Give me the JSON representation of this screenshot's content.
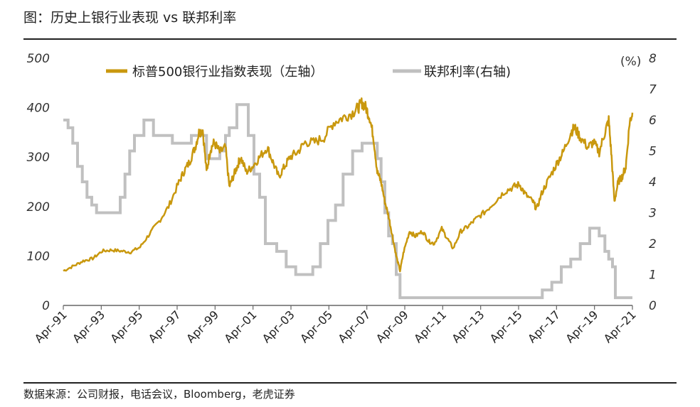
{
  "header": {
    "title": "图：历史上银行业表现 vs  联邦利率"
  },
  "footer": {
    "source": "数据来源：公司财报，电话会议，Bloomberg，老虎证券"
  },
  "colors": {
    "bank_line": "#c9980e",
    "fed_line": "#c0c0c0",
    "axis": "#666666"
  },
  "chart_data": {
    "type": "line",
    "title": "历史上银行业表现 vs  联邦利率",
    "y_left": {
      "ticks": [
        "0",
        "100",
        "200",
        "300",
        "400",
        "500"
      ],
      "lim": [
        0,
        500
      ]
    },
    "y_right": {
      "ticks": [
        "0",
        "1",
        "2",
        "3",
        "4",
        "5",
        "6",
        "7",
        "8"
      ],
      "lim": [
        0,
        8
      ],
      "unit": "(%)"
    },
    "x_range": [
      1991.25,
      2021.25
    ],
    "x_ticks": [
      "Apr–91",
      "Apr–93",
      "Apr–95",
      "Apr–97",
      "Apr–99",
      "Apr–01",
      "Apr–03",
      "Apr–05",
      "Apr–07",
      "Apr–09",
      "Apr–11",
      "Apr–13",
      "Apr–15",
      "Apr–17",
      "Apr–19",
      "Apr–21"
    ],
    "x_tick_years": [
      1991.25,
      1993.25,
      1995.25,
      1997.25,
      1999.25,
      2001.25,
      2003.25,
      2005.25,
      2007.25,
      2009.25,
      2011.25,
      2013.25,
      2015.25,
      2017.25,
      2019.25,
      2021.25
    ],
    "series": [
      {
        "name": "标普500银行业指数表现（左轴）",
        "axis": "left",
        "x": [
          1991.25,
          1991.8,
          1992.3,
          1992.8,
          1993.3,
          1993.8,
          1994.3,
          1994.8,
          1995.3,
          1995.8,
          1996.3,
          1996.8,
          1997.3,
          1997.6,
          1997.9,
          1998.2,
          1998.4,
          1998.6,
          1998.8,
          1999.0,
          1999.2,
          1999.5,
          1999.8,
          2000.0,
          2000.2,
          2000.4,
          2000.6,
          2000.9,
          2001.2,
          2001.6,
          2002.0,
          2002.3,
          2002.6,
          2002.9,
          2003.2,
          2003.6,
          2004.0,
          2004.5,
          2005.0,
          2005.5,
          2006.0,
          2006.5,
          2006.8,
          2007.0,
          2007.2,
          2007.4,
          2007.6,
          2007.8,
          2008.0,
          2008.2,
          2008.4,
          2008.6,
          2008.8,
          2009.0,
          2009.2,
          2009.5,
          2009.8,
          2010.2,
          2010.5,
          2010.8,
          2011.2,
          2011.5,
          2011.8,
          2012.2,
          2012.6,
          2013.0,
          2013.5,
          2014.0,
          2014.5,
          2015.0,
          2015.3,
          2015.6,
          2016.0,
          2016.2,
          2016.5,
          2016.9,
          2017.3,
          2017.6,
          2018.0,
          2018.2,
          2018.5,
          2018.9,
          2019.2,
          2019.5,
          2019.8,
          2020.0,
          2020.15,
          2020.3,
          2020.5,
          2020.7,
          2020.9,
          2021.1,
          2021.25
        ],
        "values": [
          70,
          80,
          90,
          95,
          110,
          112,
          110,
          108,
          118,
          145,
          170,
          200,
          245,
          270,
          290,
          320,
          350,
          355,
          270,
          315,
          330,
          310,
          320,
          240,
          260,
          280,
          300,
          270,
          280,
          300,
          320,
          290,
          260,
          280,
          300,
          310,
          330,
          330,
          340,
          370,
          380,
          390,
          400,
          410,
          400,
          380,
          340,
          270,
          250,
          210,
          180,
          140,
          100,
          70,
          110,
          150,
          140,
          150,
          130,
          125,
          155,
          135,
          115,
          150,
          160,
          175,
          190,
          210,
          230,
          240,
          245,
          225,
          210,
          195,
          230,
          260,
          290,
          310,
          350,
          360,
          340,
          320,
          330,
          310,
          350,
          375,
          300,
          210,
          250,
          260,
          280,
          370,
          390
        ]
      },
      {
        "name": "联邦利率(右轴)",
        "axis": "right",
        "x": [
          1991.25,
          1991.5,
          1991.75,
          1992.0,
          1992.25,
          1992.5,
          1992.75,
          1993.0,
          1993.5,
          1994.0,
          1994.25,
          1994.5,
          1994.75,
          1995.0,
          1995.5,
          1996.0,
          1997.0,
          1998.0,
          1998.8,
          1999.5,
          1999.8,
          2000.0,
          2000.4,
          2000.8,
          2001.0,
          2001.3,
          2001.6,
          2001.9,
          2002.5,
          2003.0,
          2003.5,
          2004.4,
          2004.8,
          2005.2,
          2005.6,
          2006.0,
          2006.5,
          2007.0,
          2007.6,
          2007.8,
          2008.0,
          2008.2,
          2008.4,
          2008.6,
          2008.8,
          2009.0,
          2015.5,
          2016.5,
          2017.0,
          2017.5,
          2018.0,
          2018.5,
          2019.0,
          2019.5,
          2019.8,
          2020.0,
          2020.2,
          2020.35,
          2021.25
        ],
        "values": [
          6.0,
          5.75,
          5.25,
          4.5,
          4.0,
          3.5,
          3.25,
          3.0,
          3.0,
          3.0,
          3.5,
          4.25,
          5.0,
          5.5,
          6.0,
          5.5,
          5.25,
          5.5,
          4.75,
          5.0,
          5.5,
          5.75,
          6.5,
          6.5,
          5.5,
          4.25,
          3.5,
          2.0,
          1.75,
          1.25,
          1.0,
          1.25,
          2.0,
          2.75,
          3.25,
          4.25,
          5.0,
          5.25,
          5.25,
          4.75,
          4.0,
          3.0,
          2.25,
          2.0,
          1.0,
          0.25,
          0.25,
          0.5,
          0.75,
          1.25,
          1.5,
          2.0,
          2.5,
          2.25,
          1.75,
          1.5,
          1.25,
          0.25,
          0.25
        ]
      }
    ],
    "legend_position": "top"
  }
}
